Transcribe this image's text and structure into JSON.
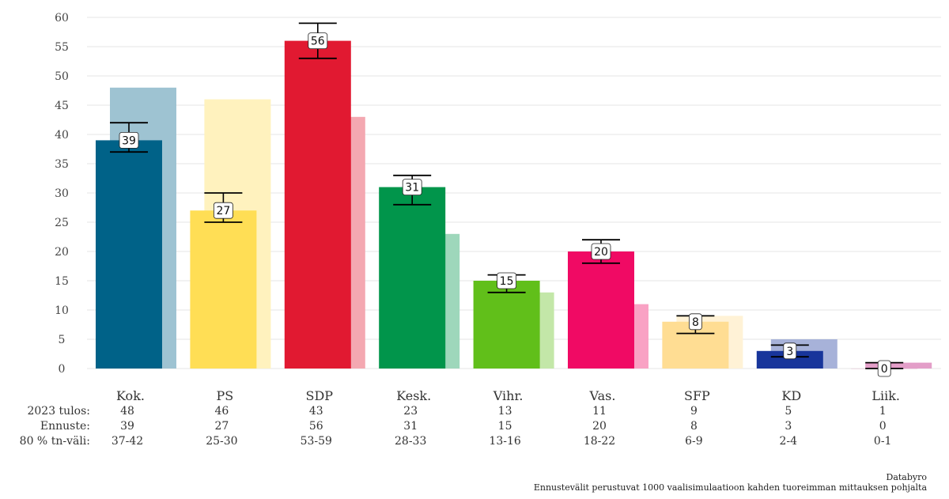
{
  "chart_data": {
    "type": "bar",
    "title": "",
    "xlabel": "",
    "ylabel": "",
    "ylim": [
      0,
      60
    ],
    "yticks": [
      0,
      5,
      10,
      15,
      20,
      25,
      30,
      35,
      40,
      45,
      50,
      55,
      60
    ],
    "grid": true,
    "categories": [
      "Kok.",
      "PS",
      "SDP",
      "Kesk.",
      "Vihr.",
      "Vas.",
      "SFP",
      "KD",
      "Liik."
    ],
    "colors": [
      "#006288",
      "#FFDE55",
      "#E11931",
      "#01954B",
      "#61BF1A",
      "#F00A64",
      "#FFDD93",
      "#18359B",
      "#B6006E"
    ],
    "series": [
      {
        "name": "Ennuste",
        "values": [
          39,
          27,
          56,
          31,
          15,
          20,
          8,
          3,
          0
        ]
      },
      {
        "name": "2023 tulos",
        "values": [
          48,
          46,
          43,
          23,
          13,
          11,
          9,
          5,
          1
        ]
      }
    ],
    "intervals": [
      [
        37,
        42
      ],
      [
        25,
        30
      ],
      [
        53,
        59
      ],
      [
        28,
        33
      ],
      [
        13,
        16
      ],
      [
        18,
        22
      ],
      [
        6,
        9
      ],
      [
        2,
        4
      ],
      [
        0,
        1
      ]
    ],
    "table_rows": [
      {
        "label": "2023 tulos:",
        "values": [
          "48",
          "46",
          "43",
          "23",
          "13",
          "11",
          "9",
          "5",
          "1"
        ]
      },
      {
        "label": "Ennuste:",
        "values": [
          "39",
          "27",
          "56",
          "31",
          "15",
          "20",
          "8",
          "3",
          "0"
        ]
      },
      {
        "label": "80 % tn-väli:",
        "values": [
          "37-42",
          "25-30",
          "53-59",
          "28-33",
          "13-16",
          "18-22",
          "6-9",
          "2-4",
          "0-1"
        ]
      }
    ]
  },
  "footer": {
    "source": "Databyro",
    "note": "Ennustevälit perustuvat 1000 vaalisimulaatioon kahden tuoreimman mittauksen pohjalta"
  }
}
